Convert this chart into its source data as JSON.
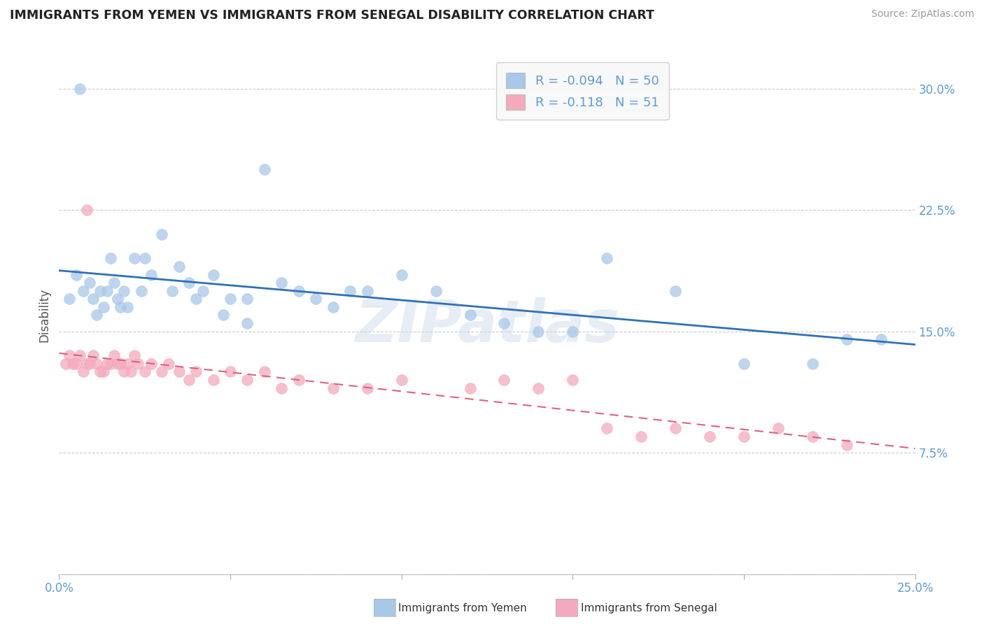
{
  "title": "IMMIGRANTS FROM YEMEN VS IMMIGRANTS FROM SENEGAL DISABILITY CORRELATION CHART",
  "source": "Source: ZipAtlas.com",
  "ylabel": "Disability",
  "xlim": [
    0.0,
    0.25
  ],
  "ylim": [
    0.0,
    0.32
  ],
  "xtick_vals": [
    0.0,
    0.05,
    0.1,
    0.15,
    0.2,
    0.25
  ],
  "xticklabels": [
    "0.0%",
    "",
    "",
    "",
    "",
    "25.0%"
  ],
  "ytick_vals": [
    0.0,
    0.075,
    0.15,
    0.225,
    0.3
  ],
  "yticklabels_left": [
    "",
    "7.5%",
    "15.0%",
    "22.5%",
    "30.0%"
  ],
  "yticklabels_right": [
    "",
    "7.5%",
    "15.0%",
    "22.5%",
    "30.0%"
  ],
  "grid_color": "#cccccc",
  "background_color": "#ffffff",
  "tick_label_color": "#5b9bd5",
  "legend_R1": "-0.094",
  "legend_N1": "50",
  "legend_R2": "-0.118",
  "legend_N2": "51",
  "yemen_color": "#a8c8e8",
  "senegal_color": "#f4aabc",
  "yemen_line_color": "#3070b8",
  "senegal_line_color": "#e06080",
  "watermark": "ZIPatlas",
  "legend_label1": "Immigrants from Yemen",
  "legend_label2": "Immigrants from Senegal",
  "yemen_scatter_x": [
    0.003,
    0.005,
    0.007,
    0.009,
    0.01,
    0.011,
    0.012,
    0.013,
    0.014,
    0.015,
    0.016,
    0.017,
    0.018,
    0.019,
    0.02,
    0.022,
    0.024,
    0.025,
    0.027,
    0.03,
    0.033,
    0.035,
    0.038,
    0.04,
    0.042,
    0.045,
    0.048,
    0.05,
    0.055,
    0.06,
    0.065,
    0.07,
    0.075,
    0.08,
    0.085,
    0.09,
    0.1,
    0.11,
    0.12,
    0.13,
    0.14,
    0.15,
    0.16,
    0.18,
    0.2,
    0.22,
    0.23,
    0.24,
    0.055,
    0.006
  ],
  "yemen_scatter_y": [
    0.17,
    0.185,
    0.175,
    0.18,
    0.17,
    0.16,
    0.175,
    0.165,
    0.175,
    0.195,
    0.18,
    0.17,
    0.165,
    0.175,
    0.165,
    0.195,
    0.175,
    0.195,
    0.185,
    0.21,
    0.175,
    0.19,
    0.18,
    0.17,
    0.175,
    0.185,
    0.16,
    0.17,
    0.17,
    0.25,
    0.18,
    0.175,
    0.17,
    0.165,
    0.175,
    0.175,
    0.185,
    0.175,
    0.16,
    0.155,
    0.15,
    0.15,
    0.195,
    0.175,
    0.13,
    0.13,
    0.145,
    0.145,
    0.155,
    0.3
  ],
  "senegal_scatter_x": [
    0.002,
    0.003,
    0.004,
    0.005,
    0.006,
    0.007,
    0.008,
    0.009,
    0.01,
    0.011,
    0.012,
    0.013,
    0.014,
    0.015,
    0.016,
    0.017,
    0.018,
    0.019,
    0.02,
    0.021,
    0.022,
    0.023,
    0.025,
    0.027,
    0.03,
    0.032,
    0.035,
    0.038,
    0.04,
    0.045,
    0.05,
    0.055,
    0.06,
    0.065,
    0.07,
    0.08,
    0.09,
    0.1,
    0.12,
    0.13,
    0.14,
    0.15,
    0.16,
    0.17,
    0.18,
    0.19,
    0.2,
    0.21,
    0.22,
    0.23,
    0.008
  ],
  "senegal_scatter_y": [
    0.13,
    0.135,
    0.13,
    0.13,
    0.135,
    0.125,
    0.13,
    0.13,
    0.135,
    0.13,
    0.125,
    0.125,
    0.13,
    0.13,
    0.135,
    0.13,
    0.13,
    0.125,
    0.13,
    0.125,
    0.135,
    0.13,
    0.125,
    0.13,
    0.125,
    0.13,
    0.125,
    0.12,
    0.125,
    0.12,
    0.125,
    0.12,
    0.125,
    0.115,
    0.12,
    0.115,
    0.115,
    0.12,
    0.115,
    0.12,
    0.115,
    0.12,
    0.09,
    0.085,
    0.09,
    0.085,
    0.085,
    0.09,
    0.085,
    0.08,
    0.225
  ]
}
